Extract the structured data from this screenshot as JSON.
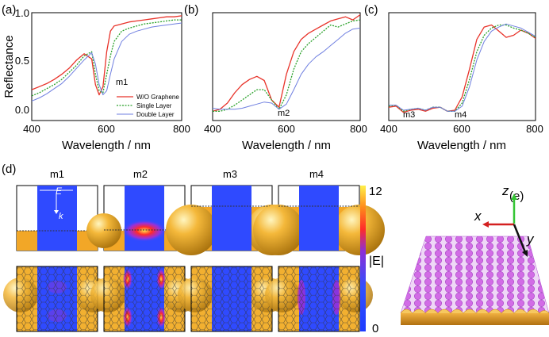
{
  "panel_labels": {
    "a": "(a)",
    "b": "(b)",
    "c": "(c)",
    "d": "(d)",
    "e": "(e)"
  },
  "ylabel": "Reflectance",
  "xlabel": "Wavelength / nm",
  "x_ticks": [
    "400",
    "600",
    "800"
  ],
  "y_ticks": [
    "0.0",
    "0.5",
    "1.0"
  ],
  "legend": [
    "W/O Graphene",
    "Single Layer",
    "Double Layer"
  ],
  "series_colors": [
    "#e8332a",
    "#2aa12a",
    "#6f7fe0"
  ],
  "annotations": {
    "a": [
      "m1"
    ],
    "b": [
      "m2"
    ],
    "c": [
      "m3",
      "m4"
    ]
  },
  "field_panels": {
    "titles": [
      "m1",
      "m2",
      "m3",
      "m4"
    ],
    "polarization": {
      "E": "E",
      "k": "k"
    },
    "colorbar": {
      "max": "12",
      "min": "0",
      "label": "|E|"
    }
  },
  "axes3d": {
    "x": "x",
    "y": "y",
    "z": "z"
  },
  "chart_data": [
    {
      "type": "line",
      "panel": "a",
      "xlabel": "Wavelength / nm",
      "ylabel": "Reflectance",
      "xlim": [
        400,
        800
      ],
      "ylim": [
        -0.05,
        1.0
      ],
      "series": [
        {
          "name": "W/O Graphene",
          "color": "#e8332a",
          "x": [
            400,
            420,
            440,
            460,
            480,
            500,
            520,
            540,
            560,
            570,
            580,
            590,
            600,
            610,
            620,
            640,
            660,
            680,
            700,
            720,
            740,
            760,
            780,
            800
          ],
          "y": [
            0.25,
            0.28,
            0.31,
            0.35,
            0.4,
            0.46,
            0.54,
            0.6,
            0.55,
            0.3,
            0.2,
            0.28,
            0.62,
            0.82,
            0.87,
            0.89,
            0.91,
            0.92,
            0.93,
            0.94,
            0.95,
            0.96,
            0.96,
            0.97
          ]
        },
        {
          "name": "Single Layer",
          "color": "#2aa12a",
          "x": [
            400,
            420,
            440,
            460,
            480,
            500,
            520,
            540,
            560,
            570,
            580,
            590,
            600,
            610,
            620,
            640,
            660,
            680,
            700,
            720,
            740,
            760,
            780,
            800
          ],
          "y": [
            0.19,
            0.22,
            0.26,
            0.3,
            0.35,
            0.42,
            0.49,
            0.58,
            0.62,
            0.4,
            0.24,
            0.22,
            0.4,
            0.58,
            0.72,
            0.82,
            0.85,
            0.87,
            0.89,
            0.9,
            0.91,
            0.92,
            0.93,
            0.93
          ]
        },
        {
          "name": "Double Layer",
          "color": "#6f7fe0",
          "x": [
            400,
            420,
            440,
            460,
            480,
            500,
            520,
            540,
            560,
            570,
            580,
            590,
            600,
            610,
            620,
            640,
            660,
            680,
            700,
            720,
            740,
            760,
            780,
            800
          ],
          "y": [
            0.14,
            0.17,
            0.21,
            0.26,
            0.31,
            0.38,
            0.46,
            0.54,
            0.61,
            0.5,
            0.3,
            0.2,
            0.24,
            0.4,
            0.55,
            0.72,
            0.79,
            0.82,
            0.84,
            0.86,
            0.87,
            0.88,
            0.89,
            0.9
          ]
        }
      ]
    },
    {
      "type": "line",
      "panel": "b",
      "xlabel": "Wavelength / nm",
      "xlim": [
        400,
        800
      ],
      "ylim": [
        -0.05,
        1.0
      ],
      "series": [
        {
          "name": "W/O Graphene",
          "color": "#e8332a",
          "x": [
            400,
            420,
            440,
            460,
            480,
            500,
            520,
            540,
            560,
            580,
            600,
            620,
            640,
            660,
            680,
            700,
            720,
            740,
            760,
            780,
            800
          ],
          "y": [
            0.04,
            0.06,
            0.12,
            0.22,
            0.3,
            0.35,
            0.38,
            0.34,
            0.15,
            0.08,
            0.4,
            0.62,
            0.74,
            0.8,
            0.84,
            0.88,
            0.92,
            0.94,
            0.96,
            0.93,
            0.98
          ]
        },
        {
          "name": "Single Layer",
          "color": "#2aa12a",
          "x": [
            400,
            420,
            440,
            460,
            480,
            500,
            520,
            540,
            560,
            580,
            600,
            620,
            640,
            660,
            680,
            700,
            720,
            740,
            760,
            780,
            800
          ],
          "y": [
            0.04,
            0.04,
            0.06,
            0.1,
            0.15,
            0.2,
            0.25,
            0.25,
            0.15,
            0.06,
            0.2,
            0.45,
            0.62,
            0.7,
            0.76,
            0.82,
            0.88,
            0.86,
            0.89,
            0.92,
            0.93
          ]
        },
        {
          "name": "Double Layer",
          "color": "#6f7fe0",
          "x": [
            400,
            420,
            440,
            460,
            480,
            500,
            520,
            540,
            560,
            580,
            600,
            620,
            640,
            660,
            680,
            700,
            720,
            740,
            760,
            780,
            800
          ],
          "y": [
            0.07,
            0.06,
            0.06,
            0.06,
            0.07,
            0.09,
            0.11,
            0.13,
            0.12,
            0.06,
            0.11,
            0.25,
            0.4,
            0.5,
            0.57,
            0.62,
            0.68,
            0.74,
            0.8,
            0.84,
            0.85
          ]
        }
      ]
    },
    {
      "type": "line",
      "panel": "c",
      "xlabel": "Wavelength / nm",
      "xlim": [
        400,
        800
      ],
      "ylim": [
        -0.05,
        1.0
      ],
      "series": [
        {
          "name": "W/O Graphene",
          "color": "#e8332a",
          "x": [
            400,
            420,
            440,
            460,
            480,
            500,
            520,
            540,
            560,
            580,
            600,
            620,
            640,
            660,
            680,
            700,
            720,
            740,
            760,
            780,
            800
          ],
          "y": [
            0.08,
            0.09,
            0.03,
            0.05,
            0.06,
            0.04,
            0.07,
            0.08,
            0.04,
            0.05,
            0.18,
            0.45,
            0.74,
            0.86,
            0.88,
            0.82,
            0.76,
            0.78,
            0.83,
            0.8,
            0.75
          ]
        },
        {
          "name": "Single Layer",
          "color": "#2aa12a",
          "x": [
            400,
            420,
            440,
            460,
            480,
            500,
            520,
            540,
            560,
            580,
            600,
            620,
            640,
            660,
            680,
            700,
            720,
            740,
            760,
            780,
            800
          ],
          "y": [
            0.09,
            0.1,
            0.04,
            0.06,
            0.07,
            0.05,
            0.08,
            0.08,
            0.04,
            0.04,
            0.12,
            0.35,
            0.62,
            0.78,
            0.85,
            0.88,
            0.88,
            0.85,
            0.83,
            0.8,
            0.76
          ]
        },
        {
          "name": "Double Layer",
          "color": "#6f7fe0",
          "x": [
            400,
            420,
            440,
            460,
            480,
            500,
            520,
            540,
            560,
            580,
            600,
            620,
            640,
            660,
            680,
            700,
            720,
            740,
            760,
            780,
            800
          ],
          "y": [
            0.1,
            0.1,
            0.05,
            0.06,
            0.07,
            0.05,
            0.08,
            0.08,
            0.04,
            0.04,
            0.09,
            0.28,
            0.54,
            0.72,
            0.82,
            0.86,
            0.89,
            0.87,
            0.85,
            0.81,
            0.77
          ]
        }
      ]
    }
  ]
}
